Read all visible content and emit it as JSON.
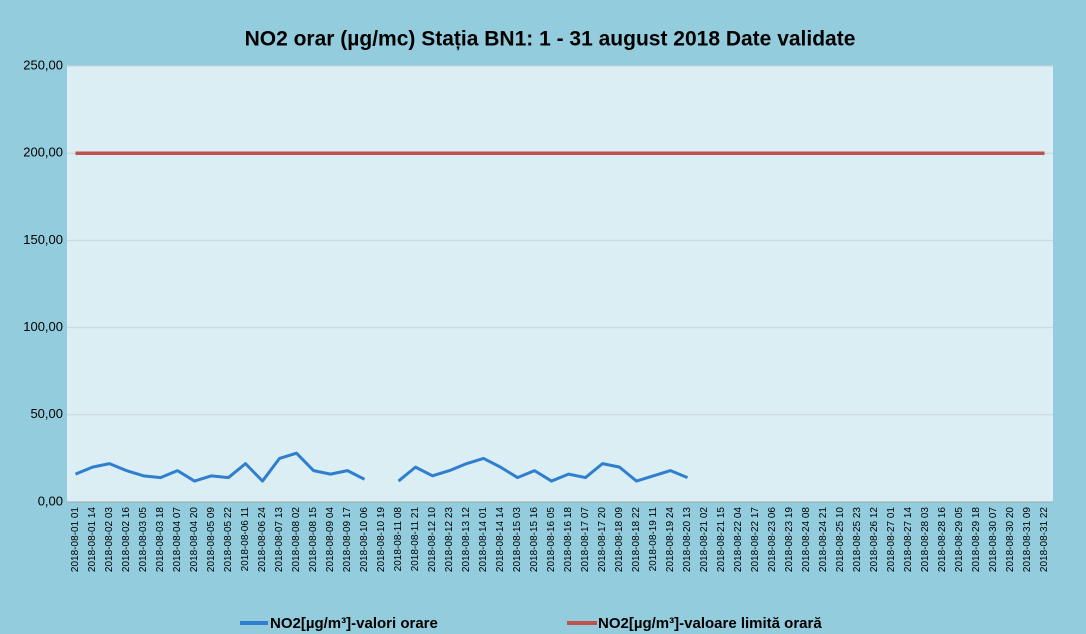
{
  "chart_data": {
    "type": "line",
    "title": "NO2 orar (µg/mc)  Stația BN1: 1 - 31 august 2018 Date validate",
    "categories": [
      "2018-08-01 01",
      "2018-08-01 14",
      "2018-08-02 03",
      "2018-08-02 16",
      "2018-08-03 05",
      "2018-08-03 18",
      "2018-08-04 07",
      "2018-08-04 20",
      "2018-08-05 09",
      "2018-08-05 22",
      "2018-08-06 11",
      "2018-08-06 24",
      "2018-08-07 13",
      "2018-08-08 02",
      "2018-08-08 15",
      "2018-08-09 04",
      "2018-08-09 17",
      "2018-08-10 06",
      "2018-08-10 19",
      "2018-08-11 08",
      "2018-08-11 21",
      "2018-08-12 10",
      "2018-08-12 23",
      "2018-08-13 12",
      "2018-08-14 01",
      "2018-08-14 14",
      "2018-08-15 03",
      "2018-08-15 16",
      "2018-08-16 05",
      "2018-08-16 18",
      "2018-08-17 07",
      "2018-08-17 20",
      "2018-08-18 09",
      "2018-08-18 22",
      "2018-08-19 11",
      "2018-08-19 24",
      "2018-08-20 13",
      "2018-08-21 02",
      "2018-08-21 15",
      "2018-08-22 04",
      "2018-08-22 17",
      "2018-08-23 06",
      "2018-08-23 19",
      "2018-08-24 08",
      "2018-08-24 21",
      "2018-08-25 10",
      "2018-08-25 23",
      "2018-08-26 12",
      "2018-08-27 01",
      "2018-08-27 14",
      "2018-08-28 03",
      "2018-08-28 16",
      "2018-08-29 05",
      "2018-08-29 18",
      "2018-08-30 07",
      "2018-08-30 20",
      "2018-08-31 09",
      "2018-08-31 22"
    ],
    "series": [
      {
        "name": "NO2[µg/m³]-valori orare",
        "color": "#2f7fce",
        "values": [
          16,
          20,
          22,
          18,
          15,
          14,
          18,
          12,
          15,
          14,
          22,
          12,
          25,
          28,
          18,
          16,
          18,
          13,
          null,
          12,
          20,
          15,
          18,
          22,
          25,
          20,
          14,
          18,
          12,
          16,
          14,
          22,
          20,
          12,
          15,
          18,
          14,
          null,
          null,
          null,
          null,
          null,
          null,
          null,
          null,
          null,
          null,
          null,
          null,
          null,
          null,
          null,
          null,
          null,
          null,
          null,
          null,
          null
        ]
      },
      {
        "name": "NO2[µg/m³]-valoare limită orară",
        "color": "#c0504d",
        "values": [
          200,
          200,
          200,
          200,
          200,
          200,
          200,
          200,
          200,
          200,
          200,
          200,
          200,
          200,
          200,
          200,
          200,
          200,
          200,
          200,
          200,
          200,
          200,
          200,
          200,
          200,
          200,
          200,
          200,
          200,
          200,
          200,
          200,
          200,
          200,
          200,
          200,
          200,
          200,
          200,
          200,
          200,
          200,
          200,
          200,
          200,
          200,
          200,
          200,
          200,
          200,
          200,
          200,
          200,
          200,
          200,
          200,
          200
        ]
      }
    ],
    "ylim": [
      0,
      250
    ],
    "yticks": [
      {
        "value": 0,
        "label": "0,00"
      },
      {
        "value": 50,
        "label": "50,00"
      },
      {
        "value": 100,
        "label": "100,00"
      },
      {
        "value": 150,
        "label": "150,00"
      },
      {
        "value": 200,
        "label": "200,00"
      },
      {
        "value": 250,
        "label": "250,00"
      }
    ],
    "grid": true
  }
}
